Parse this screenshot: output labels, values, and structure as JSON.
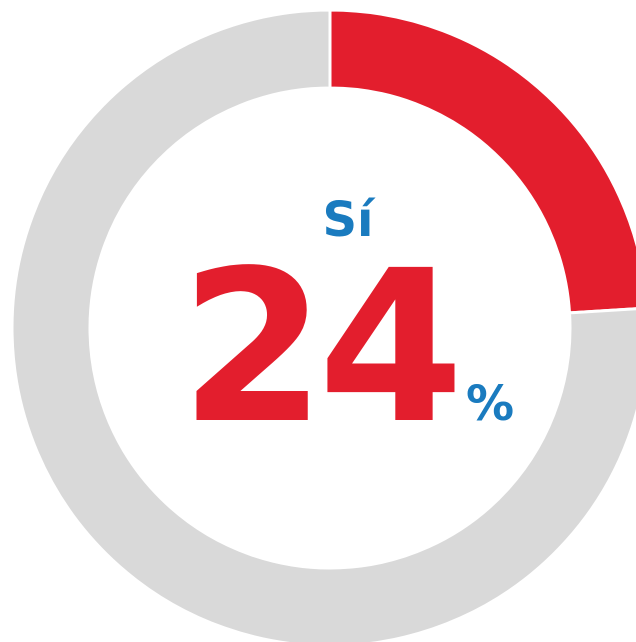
{
  "chart_data": {
    "type": "donut",
    "categories": [
      "Sí",
      null
    ],
    "values": [
      24,
      76
    ],
    "colors": [
      "#e31e2d",
      "#d9d9d9"
    ],
    "value_unit": "%"
  }
}
